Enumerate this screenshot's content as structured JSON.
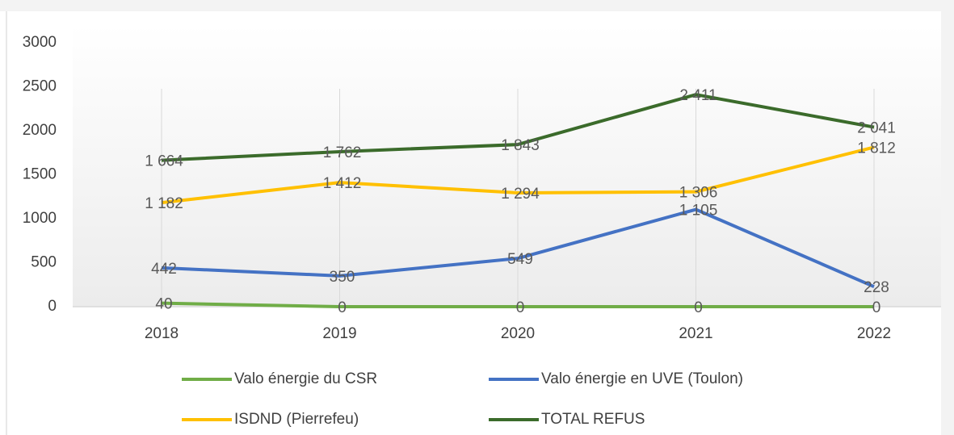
{
  "chart_data": {
    "type": "line",
    "categories": [
      "2018",
      "2019",
      "2020",
      "2021",
      "2022"
    ],
    "series": [
      {
        "name": "Valo énergie du CSR",
        "color": "#70ad47",
        "values": [
          40,
          0,
          0,
          0,
          0
        ],
        "value_labels": [
          "40",
          "0",
          "0",
          "0",
          "0"
        ]
      },
      {
        "name": "Valo énergie en UVE (Toulon)",
        "color": "#4472c4",
        "values": [
          442,
          350,
          549,
          1105,
          228
        ],
        "value_labels": [
          "442",
          "350",
          "549",
          "1 105",
          "228"
        ]
      },
      {
        "name": "ISDND (Pierrefeu)",
        "color": "#ffc000",
        "values": [
          1182,
          1412,
          1294,
          1306,
          1812
        ],
        "value_labels": [
          "1 182",
          "1 412",
          "1 294",
          "1 306",
          "1 812"
        ]
      },
      {
        "name": "TOTAL REFUS",
        "color": "#3b6b2b",
        "values": [
          1664,
          1762,
          1843,
          2411,
          2041
        ],
        "value_labels": [
          "1 664",
          "1 762",
          "1 843",
          "2 411",
          "2 041"
        ]
      }
    ],
    "ylim": [
      0,
      3000
    ],
    "yticks": [
      0,
      500,
      1000,
      1500,
      2000,
      2500,
      3000
    ],
    "grid": true,
    "legend": "bottom"
  }
}
